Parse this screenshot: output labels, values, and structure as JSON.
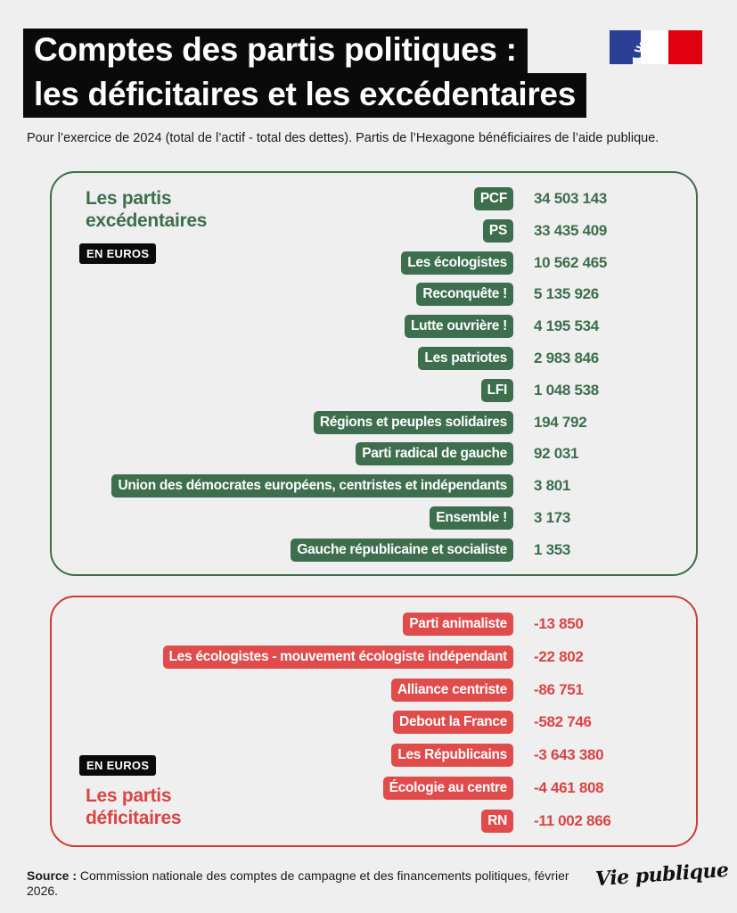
{
  "title": {
    "line1": "Comptes des partis politiques :",
    "line2": "les déficitaires et les excédentaires"
  },
  "subtitle": "Pour l’exercice de 2024 (total de l’actif - total des dettes). Partis de l’Hexagone bénéficiaires de l’aide publique.",
  "colors": {
    "surplus": "#3d6e4d",
    "deficit": "#e04b4b",
    "background": "#efefef"
  },
  "icons": {
    "flag": "french-republic-marianne-logo"
  },
  "surplus_panel": {
    "label_line1": "Les partis",
    "label_line2": "excédentaires",
    "unit": "EN EUROS"
  },
  "deficit_panel": {
    "label_line1": "Les partis",
    "label_line2": "déficitaires",
    "unit": "EN EUROS"
  },
  "chart_data": {
    "type": "table",
    "unit": "EN EUROS",
    "series": [
      {
        "name": "Les partis excédentaires",
        "items": [
          {
            "party": "PCF",
            "value": 34503143,
            "display": "34 503 143"
          },
          {
            "party": "PS",
            "value": 33435409,
            "display": "33 435 409"
          },
          {
            "party": "Les écologistes",
            "value": 10562465,
            "display": "10 562 465"
          },
          {
            "party": "Reconquête !",
            "value": 5135926,
            "display": "5 135 926"
          },
          {
            "party": "Lutte ouvrière !",
            "value": 4195534,
            "display": "4 195 534"
          },
          {
            "party": "Les patriotes",
            "value": 2983846,
            "display": "2 983 846"
          },
          {
            "party": "LFI",
            "value": 1048538,
            "display": "1 048 538"
          },
          {
            "party": "Régions et peuples solidaires",
            "value": 194792,
            "display": "194 792"
          },
          {
            "party": "Parti radical de gauche",
            "value": 92031,
            "display": "92 031"
          },
          {
            "party": "Union des démocrates européens, centristes et indépendants",
            "value": 3801,
            "display": "3 801"
          },
          {
            "party": "Ensemble !",
            "value": 3173,
            "display": "3 173"
          },
          {
            "party": "Gauche républicaine et socialiste",
            "value": 1353,
            "display": "1 353"
          }
        ]
      },
      {
        "name": "Les partis déficitaires",
        "items": [
          {
            "party": "Parti animaliste",
            "value": -13850,
            "display": "-13 850"
          },
          {
            "party": "Les écologistes - mouvement écologiste indépendant",
            "value": -22802,
            "display": "-22 802"
          },
          {
            "party": "Alliance centriste",
            "value": -86751,
            "display": "-86 751"
          },
          {
            "party": "Debout la France",
            "value": -582746,
            "display": "-582 746"
          },
          {
            "party": "Les Républicains",
            "value": -3643380,
            "display": "-3 643 380"
          },
          {
            "party": "Écologie au centre",
            "value": -4461808,
            "display": "-4 461 808"
          },
          {
            "party": "RN",
            "value": -11002866,
            "display": "-11 002 866"
          }
        ]
      }
    ]
  },
  "source": {
    "label": "Source :",
    "text": "Commission nationale des comptes de campagne et des financements politiques, février 2026."
  },
  "logo_text": "Vie publique"
}
